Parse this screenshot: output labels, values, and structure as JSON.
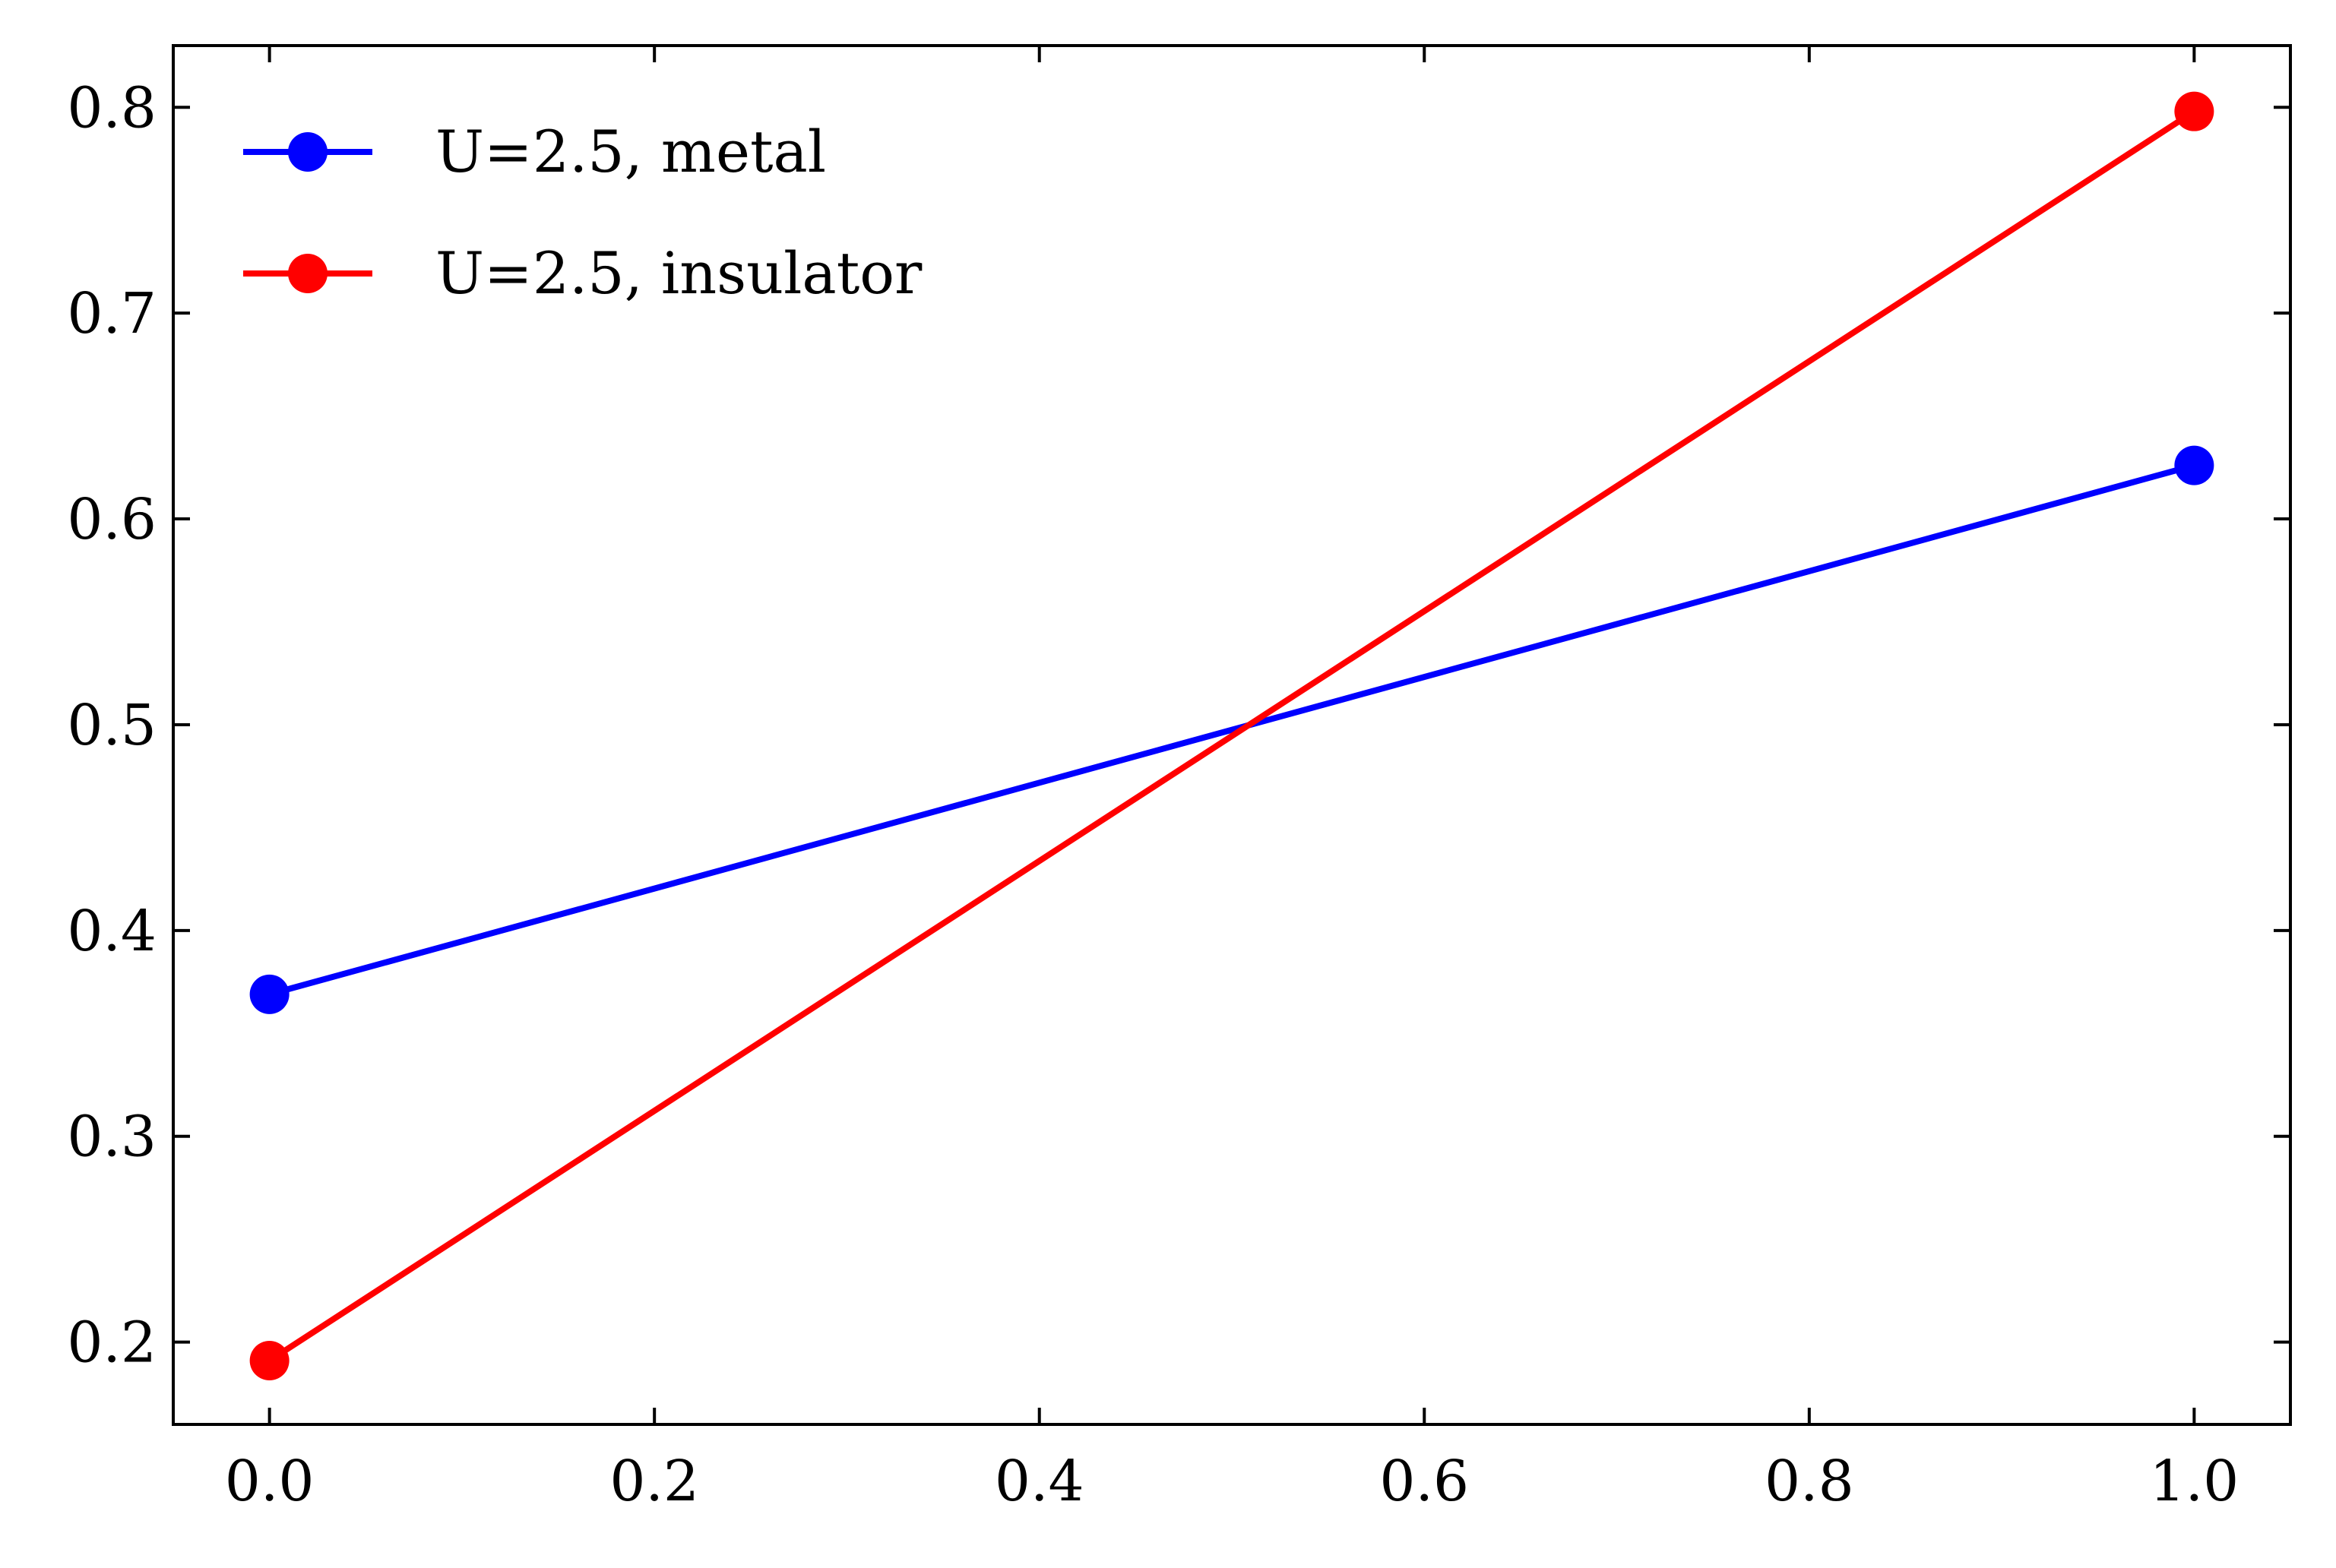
{
  "chart_data": {
    "type": "line",
    "title": "",
    "xlabel": "",
    "ylabel": "",
    "xlim": [
      -0.05,
      1.05
    ],
    "ylim": [
      0.16,
      0.83
    ],
    "x_ticks": [
      0.0,
      0.2,
      0.4,
      0.6,
      0.8,
      1.0
    ],
    "x_tick_labels": [
      "0.0",
      "0.2",
      "0.4",
      "0.6",
      "0.8",
      "1.0"
    ],
    "y_ticks": [
      0.2,
      0.3,
      0.4,
      0.5,
      0.6,
      0.7,
      0.8
    ],
    "y_tick_labels": [
      "0.2",
      "0.3",
      "0.4",
      "0.5",
      "0.6",
      "0.7",
      "0.8"
    ],
    "grid": false,
    "legend_position": "top-left",
    "series": [
      {
        "name": "U=2.5, metal",
        "color": "#0000ff",
        "x": [
          0.0,
          1.0
        ],
        "y": [
          0.369,
          0.626
        ]
      },
      {
        "name": "U=2.5, insulator",
        "color": "#ff0000",
        "x": [
          0.0,
          1.0
        ],
        "y": [
          0.191,
          0.798
        ]
      }
    ]
  }
}
